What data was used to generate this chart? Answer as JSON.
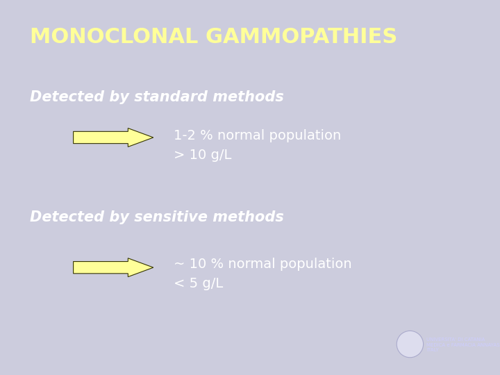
{
  "background_color": "#3333CC",
  "frame_color": "#CCCCDD",
  "title": "MONOCLONAL GAMMOPATHIES",
  "title_color": "#FFFF99",
  "title_fontsize": 22,
  "title_bold": true,
  "section1_label": "Detected by standard methods",
  "section1_text": "1-2 % normal population\n> 10 g/L",
  "section2_label": "Detected by sensitive methods",
  "section2_text": "~ 10 % normal population\n< 5 g/L",
  "section_label_color": "#FFFFFF",
  "section_label_fontsize": 15,
  "section_text_color": "#FFFFFF",
  "section_text_fontsize": 14,
  "arrow_color": "#FFFF99",
  "logo_text": "UNIVERSITA' DI CATANIA\nMEDICA e FARMACIA ANNAYAS\nITALY",
  "logo_text_color": "#CCCCFF",
  "logo_fontsize": 5.0
}
